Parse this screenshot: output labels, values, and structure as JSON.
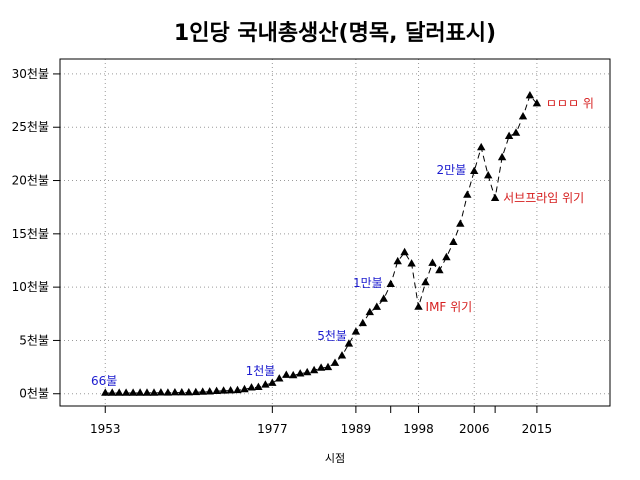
{
  "chart_data": {
    "type": "line",
    "title": "1인당 국내총생산(명목, 달러표시)",
    "xlabel": "시점",
    "ylabel": "",
    "xlim": [
      1946.5,
      2025.5
    ],
    "ylim": [
      -1150,
      31400
    ],
    "xticks": [
      1953,
      1977,
      1989,
      1998,
      2006,
      2015
    ],
    "extra_xtick_marks": [
      1994,
      2009
    ],
    "yticks": [
      0,
      5000,
      10000,
      15000,
      20000,
      25000,
      30000
    ],
    "ytick_labels": [
      "0천불",
      "5천불",
      "10천불",
      "15천불",
      "20천불",
      "25천불",
      "30천불"
    ],
    "grid": true,
    "marker": "triangle",
    "line_style": "dashed",
    "series": [
      {
        "x": [
          1953,
          1954,
          1955,
          1956,
          1957,
          1958,
          1959,
          1960,
          1961,
          1962,
          1963,
          1964,
          1965,
          1966,
          1967,
          1968,
          1969,
          1970,
          1971,
          1972,
          1973,
          1974,
          1975,
          1976,
          1977,
          1978,
          1979,
          1980,
          1981,
          1982,
          1983,
          1984,
          1985,
          1986,
          1987,
          1988,
          1989,
          1990,
          1991,
          1992,
          1993,
          1994,
          1995,
          1996,
          1997,
          1998,
          1999,
          2000,
          2001,
          2002,
          2003,
          2004,
          2005,
          2006,
          2007,
          2008,
          2009,
          2010,
          2011,
          2012,
          2013,
          2014,
          2015
        ],
        "y": [
          66,
          70,
          65,
          66,
          74,
          81,
          81,
          79,
          93,
          91,
          104,
          105,
          108,
          132,
          159,
          196,
          241,
          279,
          299,
          321,
          405,
          563,
          615,
          835,
          1000,
          1409,
          1746,
          1711,
          1883,
          1991,
          2188,
          2413,
          2483,
          2877,
          3568,
          4686,
          5811,
          6610,
          7637,
          8126,
          8886,
          10273,
          12403,
          13255,
          12197,
          8134,
          10432,
          12257,
          11561,
          12788,
          14219,
          15922,
          18640,
          20873,
          23102,
          20463,
          18339,
          22170,
          24156,
          24454,
          25998,
          27970,
          27214
        ]
      }
    ],
    "annotations": [
      {
        "text": "66불",
        "x": 1953,
        "y": 66,
        "color": "#1c1ccf",
        "anchor": "end",
        "dx": 12,
        "dy": -8
      },
      {
        "text": "1천불",
        "x": 1977,
        "y": 1000,
        "color": "#1c1ccf",
        "anchor": "end",
        "dx": 3,
        "dy": -8
      },
      {
        "text": "5천불",
        "x": 1988,
        "y": 4686,
        "color": "#1c1ccf",
        "anchor": "end",
        "dx": -2,
        "dy": -4
      },
      {
        "text": "1만불",
        "x": 1994,
        "y": 10273,
        "color": "#1c1ccf",
        "anchor": "end",
        "dx": -8,
        "dy": 3
      },
      {
        "text": "2만불",
        "x": 2006,
        "y": 20873,
        "color": "#1c1ccf",
        "anchor": "end",
        "dx": -8,
        "dy": 3
      },
      {
        "text": "IMF 위기",
        "x": 1998,
        "y": 8134,
        "color": "#d62020",
        "anchor": "start",
        "dx": 7,
        "dy": 4
      },
      {
        "text": "서브프라임 위기",
        "x": 2009,
        "y": 18339,
        "color": "#d62020",
        "anchor": "start",
        "dx": 8,
        "dy": 4
      },
      {
        "text": "ㅁㅁㅁ 위",
        "x": 2015,
        "y": 27214,
        "color": "#d62020",
        "anchor": "start",
        "dx": 9,
        "dy": 4
      }
    ]
  }
}
